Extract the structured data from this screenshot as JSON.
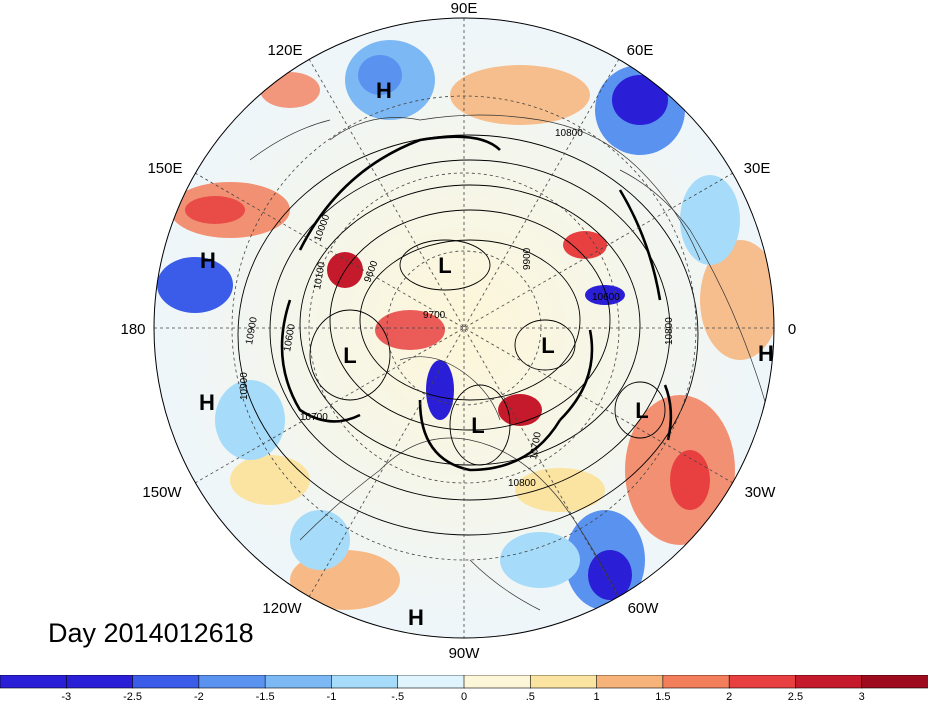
{
  "title": "Day 2014012618",
  "longitude_labels": {
    "e90": "90E",
    "e120": "120E",
    "e60": "60E",
    "e150": "150E",
    "e30": "30E",
    "d180": "180",
    "d0": "0",
    "w150": "150W",
    "w30": "30W",
    "w120": "120W",
    "w60": "60W",
    "w90": "90W"
  },
  "pressure_centers": [
    "H",
    "H",
    "H",
    "H",
    "H",
    "L",
    "L",
    "L",
    "L",
    "L"
  ],
  "contour_labels": [
    "10800",
    "10800",
    "10900",
    "10900",
    "10700",
    "9600",
    "9700",
    "9900",
    "10000",
    "10600",
    "10100",
    "10800",
    "10700",
    "10600"
  ],
  "colorbar": {
    "labels": [
      "-3",
      "-2.5",
      "-2",
      "-1.5",
      "-1",
      "-.5",
      "0",
      ".5",
      "1",
      "1.5",
      "2",
      "2.5",
      "3"
    ],
    "colors": [
      "#2a1ed6",
      "#3a5ce8",
      "#5a92ef",
      "#7cb8f4",
      "#a6dcf9",
      "#dff4fc",
      "#fdf6d8",
      "#fbe4a2",
      "#f7b47a",
      "#f27e5c",
      "#e84040",
      "#c41a2c",
      "#9e0a1e"
    ]
  }
}
